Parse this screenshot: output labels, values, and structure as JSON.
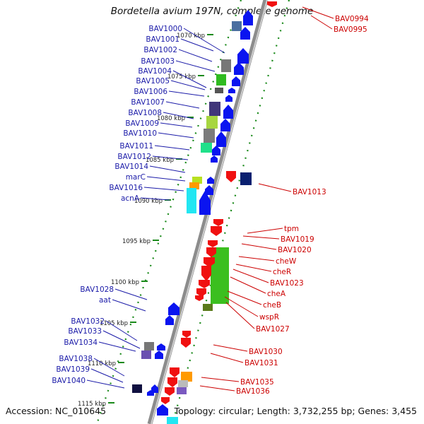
{
  "title": "Bordetella avium 197N, complete genome",
  "footer": {
    "accession": "Accession: NC_010645",
    "topology": "Topology: circular; Length: 3,732,255 bp; Genes: 3,455"
  },
  "colors": {
    "backbone": "#8c8c8c",
    "forward_label": "#1a1aa8",
    "reverse_label": "#cc0000",
    "tick_mark": "#1a8a1a",
    "forward_gene": "#0a14f0",
    "reverse_gene": "#f01010"
  },
  "ruler": {
    "ticks": [
      {
        "label": "1070 kbp"
      },
      {
        "label": "1075 kbp"
      },
      {
        "label": "1080 kbp"
      },
      {
        "label": "1085 kbp"
      },
      {
        "label": "1090 kbp"
      },
      {
        "label": "1095 kbp"
      },
      {
        "label": "1100 kbp"
      },
      {
        "label": "1105 kbp"
      },
      {
        "label": "1110 kbp"
      },
      {
        "label": "1115 kbp"
      }
    ]
  },
  "forward_labels": [
    "BAV1000",
    "BAV1001",
    "BAV1002",
    "BAV1003",
    "BAV1004",
    "BAV1005",
    "BAV1006",
    "BAV1007",
    "BAV1008",
    "BAV1009",
    "BAV1010",
    "BAV1011",
    "BAV1012",
    "BAV1014",
    "marC",
    "BAV1016",
    "acnA",
    "BAV1028",
    "aat",
    "BAV1032",
    "BAV1033",
    "BAV1034",
    "BAV1038",
    "BAV1039",
    "BAV1040"
  ],
  "reverse_labels": [
    "BAV0994",
    "BAV0995",
    "BAV1013",
    "tpm",
    "BAV1019",
    "BAV1020",
    "cheW",
    "cheR",
    "BAV1023",
    "cheA",
    "cheB",
    "wspR",
    "BAV1027",
    "BAV1030",
    "BAV1031",
    "BAV1035",
    "BAV1036"
  ]
}
